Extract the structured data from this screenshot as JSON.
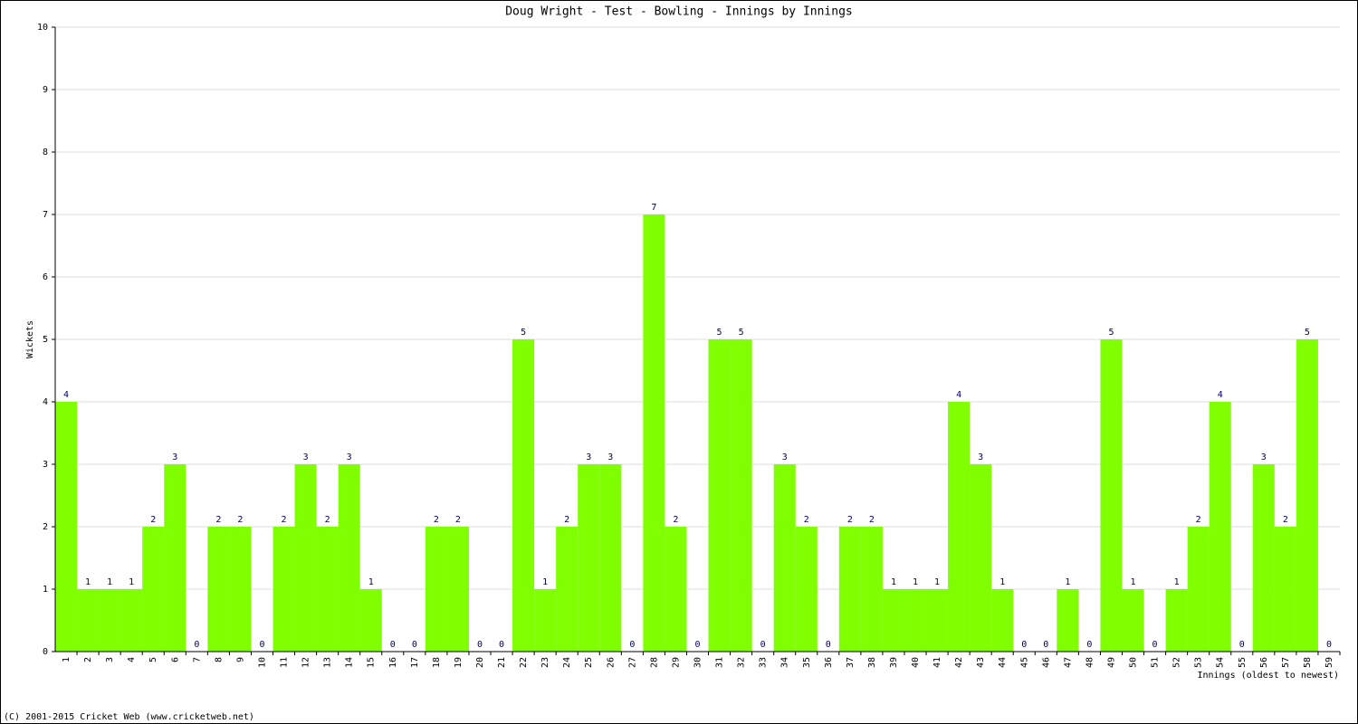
{
  "chart_data": {
    "type": "bar",
    "title": "Doug Wright - Test - Bowling - Innings by Innings",
    "y_label": "Wickets",
    "x_label": "Innings (oldest to newest)",
    "footer": "(C) 2001-2015 Cricket Web (www.cricketweb.net)",
    "categories": [
      "1",
      "2",
      "3",
      "4",
      "5",
      "6",
      "7",
      "8",
      "9",
      "10",
      "11",
      "12",
      "13",
      "14",
      "15",
      "16",
      "17",
      "18",
      "19",
      "20",
      "21",
      "22",
      "23",
      "24",
      "25",
      "26",
      "27",
      "28",
      "29",
      "30",
      "31",
      "32",
      "33",
      "34",
      "35",
      "36",
      "37",
      "38",
      "39",
      "40",
      "41",
      "42",
      "43",
      "44",
      "45",
      "46",
      "47",
      "48",
      "49",
      "50",
      "51",
      "52",
      "53",
      "54",
      "55",
      "56",
      "57",
      "58",
      "59"
    ],
    "values": [
      4,
      1,
      1,
      1,
      2,
      3,
      0,
      2,
      2,
      0,
      2,
      3,
      2,
      3,
      1,
      0,
      0,
      2,
      2,
      0,
      0,
      5,
      1,
      2,
      3,
      3,
      0,
      7,
      2,
      0,
      5,
      5,
      0,
      3,
      2,
      0,
      2,
      2,
      1,
      1,
      1,
      4,
      3,
      1,
      0,
      0,
      1,
      0,
      5,
      1,
      0,
      1,
      2,
      4,
      0,
      3,
      2,
      5,
      0
    ],
    "color": "#7fff00",
    "ylim": [
      0,
      10
    ],
    "yticks": [
      0,
      1,
      2,
      3,
      4,
      5,
      6,
      7,
      8,
      9,
      10
    ],
    "grid": true
  }
}
